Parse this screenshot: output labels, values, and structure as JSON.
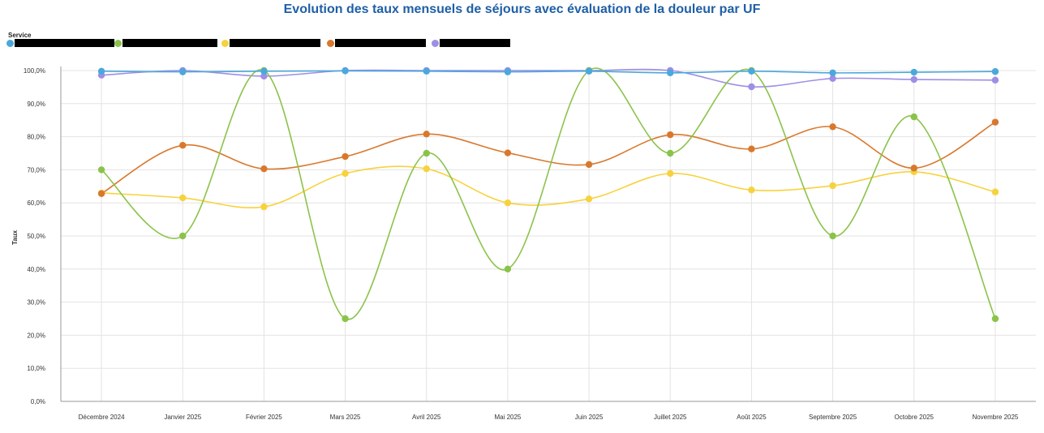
{
  "chart_data": {
    "type": "line",
    "title": "Evolution des taux mensuels de séjours avec évaluation de la douleur par UF",
    "legend_title": "Service",
    "legend_placement": "top-left",
    "ylabel": "Taux",
    "xlabel": "",
    "ylim": [
      0,
      100
    ],
    "y_ticks": [
      "0,0%",
      "10,0%",
      "20,0%",
      "30,0%",
      "40,0%",
      "50,0%",
      "60,0%",
      "70,0%",
      "80,0%",
      "90,0%",
      "100,0%"
    ],
    "grid": true,
    "categories": [
      "Décembre 2024",
      "Janvier 2025",
      "Février 2025",
      "Mars 2025",
      "Avril 2025",
      "Mai 2025",
      "Juin 2025",
      "Juillet 2025",
      "Août 2025",
      "Septembre 2025",
      "Octobre 2025",
      "Novembre 2025"
    ],
    "series": [
      {
        "color": "#4aa8dc",
        "values": [
          99.8,
          99.6,
          99.8,
          99.9,
          99.8,
          99.6,
          99.8,
          99.3,
          99.8,
          99.3,
          99.5,
          99.7
        ]
      },
      {
        "color": "#8bc34a",
        "values": [
          70.0,
          50.0,
          100.0,
          25.0,
          75.0,
          40.0,
          100.0,
          75.0,
          100.0,
          50.0,
          86.0,
          25.0
        ]
      },
      {
        "color": "#f7d23e",
        "values": [
          63.0,
          61.5,
          58.8,
          68.9,
          70.3,
          60.0,
          61.2,
          68.9,
          63.9,
          65.2,
          69.4,
          63.3
        ]
      },
      {
        "color": "#d9782d",
        "values": [
          62.8,
          77.4,
          70.3,
          74.0,
          80.8,
          75.1,
          71.6,
          80.6,
          76.3,
          83.0,
          70.5,
          84.4
        ]
      },
      {
        "color": "#9e8ee6",
        "values": [
          98.6,
          100.0,
          98.3,
          100.0,
          100.0,
          100.0,
          100.0,
          100.0,
          95.1,
          97.6,
          97.3,
          97.1
        ]
      }
    ]
  }
}
